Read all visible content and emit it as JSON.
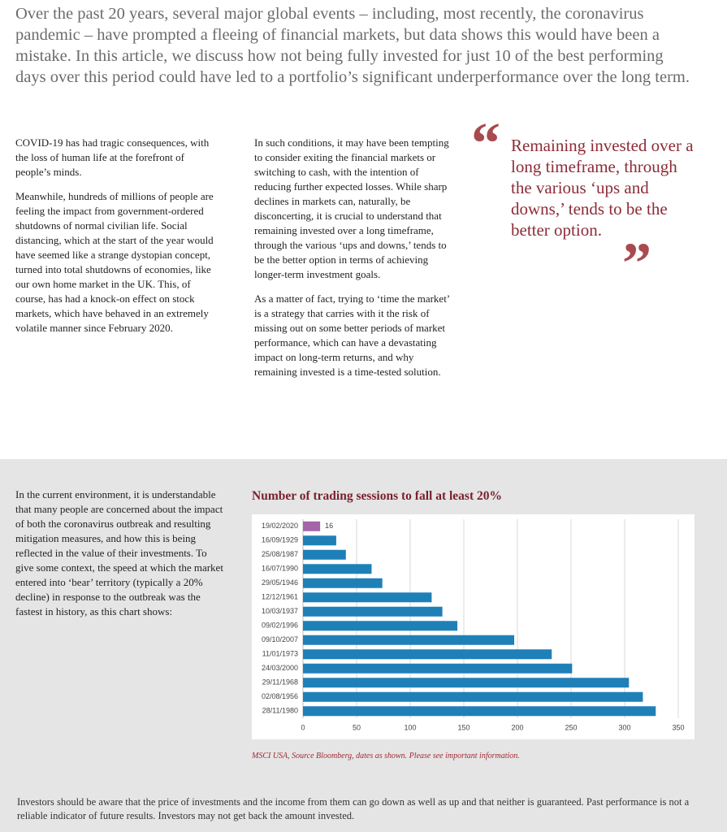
{
  "intro": "Over the past 20 years, several major global events – including, most recently, the coronavirus pandemic – have prompted a fleeing of financial markets, but data shows this would have been a mistake. In this article, we discuss how not being fully invested for just 10 of the best performing days over this period could have led to a portfolio’s significant underperformance over the long term.",
  "columns": [
    [
      "COVID-19 has had tragic consequences, with the loss of human life at the forefront of people’s minds.",
      "Meanwhile, hundreds of millions of people are feeling the impact from government-ordered shutdowns of normal civilian life. Social distancing, which at the start of the year would have seemed like a strange dystopian concept, turned into total shutdowns of economies, like our own home market in the UK. This, of course, has had a knock-on effect on stock markets, which have behaved in an extremely volatile manner since February 2020."
    ],
    [
      "In such conditions, it may have been tempting to consider exiting the financial markets or switching to cash, with the intention of reducing further expected losses. While sharp declines in markets can, naturally, be disconcerting, it is crucial to understand that remaining invested over a long timeframe, through the various ‘ups and downs,’ tends to be the better option in terms of achieving longer-term investment goals.",
      "As a matter of fact, trying to ‘time the market’ is a strategy that carries with it the risk of missing out on some better periods of market performance, which can have a devastating impact on long-term returns, and why remaining invested is a time-tested solution."
    ]
  ],
  "quote": {
    "open": "“",
    "text": "Remaining invested over a long timeframe, through the various ‘ups and downs,’ tends to be the better option.",
    "close": "”"
  },
  "section_text": "In the current environment, it is understandable that many people are concerned about the impact of both the coronavirus outbreak and resulting mitigation measures, and how this is being reflected in the value of their investments. To give some context, the speed at which the market entered into ‘bear’ territory (typically a 20% decline) in response to the outbreak was the fastest in history, as this chart shows:",
  "chart_data": {
    "type": "barh",
    "title": "Number of trading sessions to fall at least 20%",
    "categories": [
      "19/02/2020",
      "16/09/1929",
      "25/08/1987",
      "16/07/1990",
      "29/05/1946",
      "12/12/1961",
      "10/03/1937",
      "09/02/1996",
      "09/10/2007",
      "11/01/1973",
      "24/03/2000",
      "29/11/1968",
      "02/08/1956",
      "28/11/1980"
    ],
    "values": [
      16,
      31,
      40,
      64,
      74,
      120,
      130,
      144,
      197,
      232,
      251,
      304,
      317,
      329
    ],
    "colors": [
      "#a464aa",
      "#1f80b8",
      "#1f80b8",
      "#1f80b8",
      "#1f80b8",
      "#1f80b8",
      "#1f80b8",
      "#1f80b8",
      "#1f80b8",
      "#1f80b8",
      "#1f80b8",
      "#1f80b8",
      "#1f80b8",
      "#1f80b8"
    ],
    "value_labels": [
      "16",
      null,
      null,
      null,
      null,
      null,
      null,
      null,
      null,
      null,
      null,
      null,
      null,
      null
    ],
    "xlim": [
      0,
      350
    ],
    "xticks": [
      0,
      50,
      100,
      150,
      200,
      250,
      300,
      350
    ],
    "grid": true,
    "note": "MSCI USA, Source Bloomberg, dates as shown. Please see important information."
  },
  "disclaimer": "Investors should be aware that the price of investments and the income from them can go down as well as up and that neither is guaranteed. Past performance is not a reliable indicator of future results. Investors may not get back the amount invested."
}
